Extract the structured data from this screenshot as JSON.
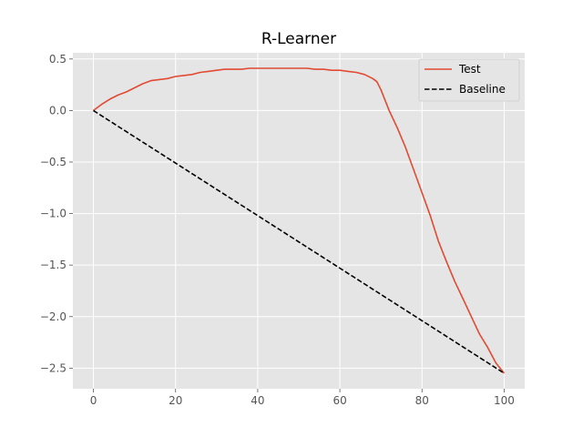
{
  "chart_data": {
    "type": "line",
    "title": "R-Learner",
    "xlabel": "",
    "ylabel": "",
    "xlim": [
      -5,
      105
    ],
    "ylim": [
      -2.7,
      0.56
    ],
    "xticks": [
      0,
      20,
      40,
      60,
      80,
      100
    ],
    "yticks": [
      0.5,
      0.0,
      -0.5,
      -1.0,
      -1.5,
      -2.0,
      -2.5
    ],
    "xtick_labels": [
      "0",
      "20",
      "40",
      "60",
      "80",
      "100"
    ],
    "ytick_labels": [
      "0.5",
      "0.0",
      "−0.5",
      "−1.0",
      "−1.5",
      "−2.0",
      "−2.5"
    ],
    "grid": true,
    "legend_position": "upper right",
    "style": "ggplot",
    "series": [
      {
        "name": "Test",
        "color": "#e24a33",
        "dash": "solid",
        "x": [
          0,
          2,
          4,
          6,
          8,
          10,
          12,
          14,
          16,
          18,
          20,
          22,
          24,
          26,
          28,
          30,
          32,
          34,
          36,
          38,
          40,
          42,
          44,
          46,
          48,
          50,
          52,
          54,
          56,
          58,
          60,
          62,
          64,
          66,
          68,
          69,
          70,
          71,
          72,
          74,
          76,
          78,
          80,
          82,
          84,
          86,
          88,
          90,
          92,
          94,
          96,
          98,
          100
        ],
        "y": [
          0.0,
          0.06,
          0.11,
          0.15,
          0.18,
          0.22,
          0.26,
          0.29,
          0.3,
          0.31,
          0.33,
          0.34,
          0.35,
          0.37,
          0.38,
          0.39,
          0.4,
          0.4,
          0.4,
          0.41,
          0.41,
          0.41,
          0.41,
          0.41,
          0.41,
          0.41,
          0.41,
          0.4,
          0.4,
          0.39,
          0.39,
          0.38,
          0.37,
          0.35,
          0.31,
          0.28,
          0.2,
          0.1,
          0.0,
          -0.17,
          -0.36,
          -0.58,
          -0.8,
          -1.02,
          -1.27,
          -1.47,
          -1.66,
          -1.83,
          -2.0,
          -2.17,
          -2.3,
          -2.45,
          -2.55
        ]
      },
      {
        "name": "Baseline",
        "color": "#000000",
        "dash": "dashed",
        "x": [
          0,
          100
        ],
        "y": [
          0.0,
          -2.55
        ]
      }
    ]
  }
}
